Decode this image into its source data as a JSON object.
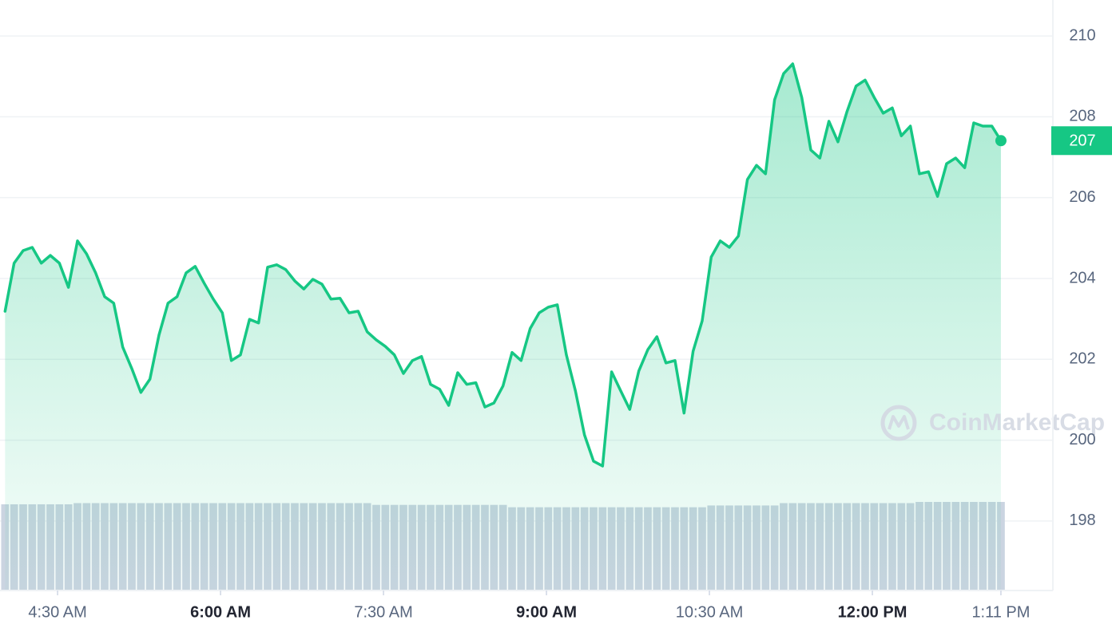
{
  "chart_data": {
    "type": "line",
    "color": "#16c784",
    "x": [
      241,
      246,
      251,
      256,
      261,
      266,
      271,
      276,
      281,
      286,
      291,
      296,
      301,
      306,
      311,
      316,
      321,
      326,
      331,
      336,
      341,
      346,
      351,
      356,
      361,
      366,
      371,
      376,
      381,
      386,
      391,
      396,
      401,
      406,
      411,
      416,
      421,
      426,
      431,
      436,
      441,
      446,
      451,
      456,
      461,
      466,
      471,
      476,
      481,
      486,
      491,
      496,
      501,
      506,
      511,
      516,
      521,
      526,
      531,
      536,
      541,
      546,
      551,
      556,
      561,
      566,
      571,
      576,
      581,
      586,
      591,
      596,
      601,
      606,
      611,
      616,
      621,
      626,
      631,
      636,
      641,
      646,
      651,
      656,
      661,
      666,
      671,
      676,
      681,
      686,
      691,
      696,
      701,
      706,
      711,
      716,
      721,
      726,
      731,
      736,
      741,
      746,
      751,
      756,
      761,
      766,
      771,
      776,
      781,
      786,
      791
    ],
    "values": [
      203.19,
      204.38,
      204.69,
      204.77,
      204.38,
      204.57,
      204.38,
      203.78,
      204.93,
      204.61,
      204.14,
      203.55,
      203.39,
      202.3,
      201.77,
      201.18,
      201.51,
      202.6,
      203.39,
      203.55,
      204.14,
      204.3,
      203.88,
      203.49,
      203.15,
      201.97,
      202.11,
      202.99,
      202.9,
      204.28,
      204.34,
      204.22,
      203.94,
      203.74,
      203.98,
      203.86,
      203.49,
      203.51,
      203.15,
      203.19,
      202.68,
      202.48,
      202.32,
      202.11,
      201.65,
      201.97,
      202.07,
      201.38,
      201.26,
      200.86,
      201.67,
      201.38,
      201.42,
      200.82,
      200.92,
      201.34,
      202.17,
      201.97,
      202.76,
      203.15,
      203.29,
      203.35,
      202.11,
      201.22,
      200.13,
      199.48,
      199.36,
      201.69,
      201.22,
      200.76,
      201.71,
      202.24,
      202.56,
      201.91,
      201.97,
      200.67,
      202.2,
      202.95,
      204.53,
      204.93,
      204.77,
      205.05,
      206.45,
      206.8,
      206.59,
      208.42,
      209.07,
      209.31,
      208.48,
      207.18,
      206.98,
      207.89,
      207.38,
      208.13,
      208.76,
      208.91,
      208.48,
      208.09,
      208.22,
      207.53,
      207.77,
      206.59,
      206.64,
      206.03,
      206.84,
      206.98,
      206.74,
      207.85,
      207.77,
      207.77,
      207.41
    ],
    "volume": {
      "color": "#cbd4e1",
      "y2lim": [
        0,
        100
      ],
      "values": [
        14.6,
        14.6,
        14.6,
        14.6,
        14.6,
        14.6,
        14.6,
        14.6,
        14.8,
        14.8,
        14.8,
        14.8,
        14.8,
        14.8,
        14.8,
        14.8,
        14.8,
        14.8,
        14.8,
        14.8,
        14.8,
        14.8,
        14.8,
        14.8,
        14.8,
        14.8,
        14.8,
        14.8,
        14.8,
        14.8,
        14.8,
        14.8,
        14.8,
        14.8,
        14.8,
        14.8,
        14.8,
        14.8,
        14.8,
        14.8,
        14.8,
        14.5,
        14.5,
        14.5,
        14.5,
        14.5,
        14.5,
        14.5,
        14.5,
        14.5,
        14.5,
        14.5,
        14.5,
        14.5,
        14.5,
        14.5,
        14.1,
        14.1,
        14.1,
        14.1,
        14.1,
        14.1,
        14.1,
        14.1,
        14.1,
        14.1,
        14.1,
        14.1,
        14.1,
        14.1,
        14.1,
        14.1,
        14.1,
        14.1,
        14.1,
        14.1,
        14.1,
        14.1,
        14.4,
        14.4,
        14.4,
        14.4,
        14.4,
        14.4,
        14.4,
        14.4,
        14.8,
        14.8,
        14.8,
        14.8,
        14.8,
        14.8,
        14.8,
        14.8,
        14.8,
        14.8,
        14.8,
        14.8,
        14.8,
        14.8,
        14.8,
        15.0,
        15.0,
        15.0,
        15.0,
        15.0,
        15.0,
        15.0,
        15.0,
        15.0,
        15.0
      ]
    },
    "xlim": [
      238.2,
      819.7
    ],
    "ylim": [
      196.28,
      210.89
    ],
    "xticks": [
      {
        "value": 270,
        "label": "4:30 AM"
      },
      {
        "value": 360,
        "label": "6:00 AM",
        "bold": true
      },
      {
        "value": 450,
        "label": "7:30 AM"
      },
      {
        "value": 540,
        "label": "9:00 AM",
        "bold": true
      },
      {
        "value": 630,
        "label": "10:30 AM"
      },
      {
        "value": 720,
        "label": "12:00 PM",
        "bold": true
      },
      {
        "value": 791,
        "label": "1:11 PM"
      }
    ],
    "yticks": [
      198,
      200,
      202,
      204,
      206,
      208,
      210
    ],
    "grid": true,
    "last_price": {
      "value": 207.41,
      "label": "207"
    },
    "watermark": "CoinMarketCap"
  }
}
